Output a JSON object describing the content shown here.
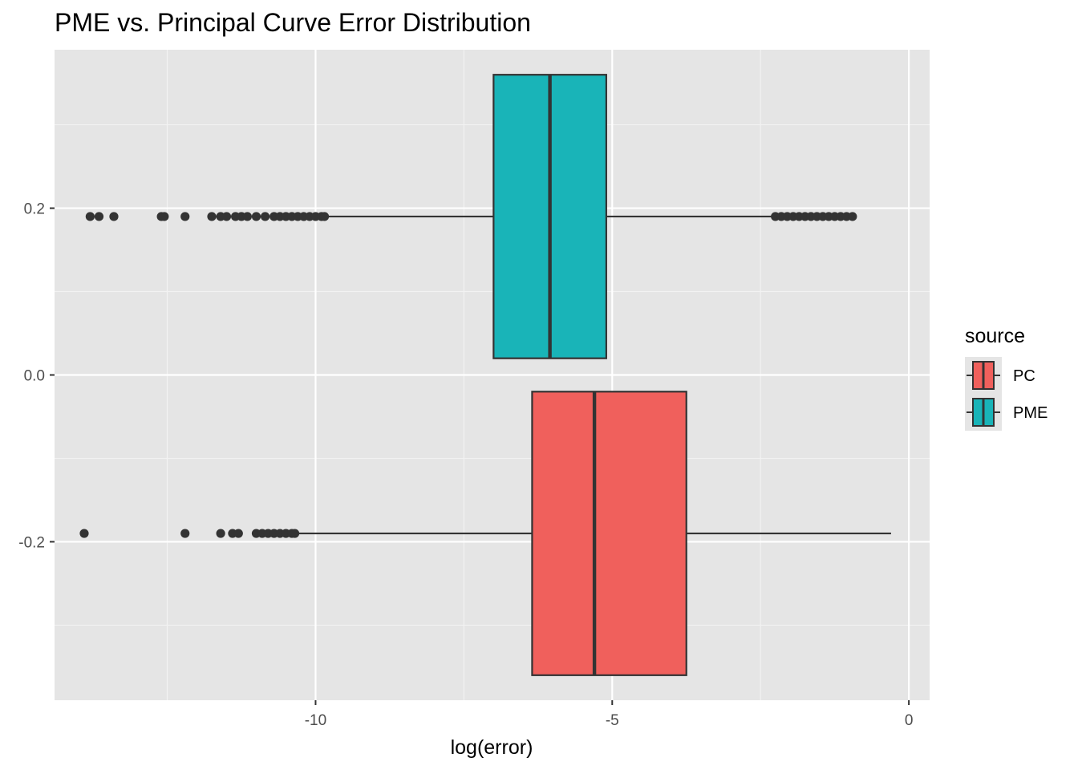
{
  "chart_data": {
    "type": "boxplot",
    "orientation": "horizontal",
    "title": "PME vs. Principal Curve Error Distribution",
    "xlabel": "log(error)",
    "ylabel": "",
    "xlim": [
      -14.4,
      0.35
    ],
    "ylim": [
      -0.39,
      0.39
    ],
    "x_ticks": [
      -10,
      -5,
      0
    ],
    "x_tick_labels": [
      "-10",
      "-5",
      "0"
    ],
    "y_ticks": [
      0.2,
      0.0,
      -0.2
    ],
    "y_tick_labels": [
      "0.2",
      "0.0",
      "-0.2"
    ],
    "grid": true,
    "legend": {
      "title": "source",
      "position": "right",
      "entries": [
        "PC",
        "PME"
      ]
    },
    "series": [
      {
        "name": "PME",
        "color": "#19B4B8",
        "y_center": 0.19,
        "box_y": [
          0.02,
          0.36
        ],
        "whisker_low": -9.8,
        "q1": -7.0,
        "median": -6.05,
        "q3": -5.1,
        "whisker_high": -0.9,
        "outliers": [
          -13.8,
          -13.65,
          -13.4,
          -12.6,
          -12.55,
          -12.2,
          -11.75,
          -11.6,
          -11.5,
          -11.35,
          -11.25,
          -11.15,
          -11.0,
          -10.85,
          -10.7,
          -10.6,
          -10.5,
          -10.4,
          -10.3,
          -10.2,
          -10.1,
          -10.0,
          -9.9,
          -9.85,
          -2.25,
          -2.15,
          -2.05,
          -1.95,
          -1.85,
          -1.75,
          -1.65,
          -1.55,
          -1.45,
          -1.35,
          -1.25,
          -1.15,
          -1.05,
          -0.95
        ]
      },
      {
        "name": "PC",
        "color": "#F0605C",
        "y_center": -0.19,
        "box_y": [
          -0.36,
          -0.02
        ],
        "whisker_low": -10.35,
        "q1": -6.35,
        "median": -5.3,
        "q3": -3.75,
        "whisker_high": -0.3,
        "outliers": [
          -13.9,
          -12.2,
          -11.6,
          -11.4,
          -11.3,
          -11.0,
          -10.9,
          -10.8,
          -10.7,
          -10.6,
          -10.5,
          -10.4,
          -10.35
        ]
      }
    ]
  }
}
